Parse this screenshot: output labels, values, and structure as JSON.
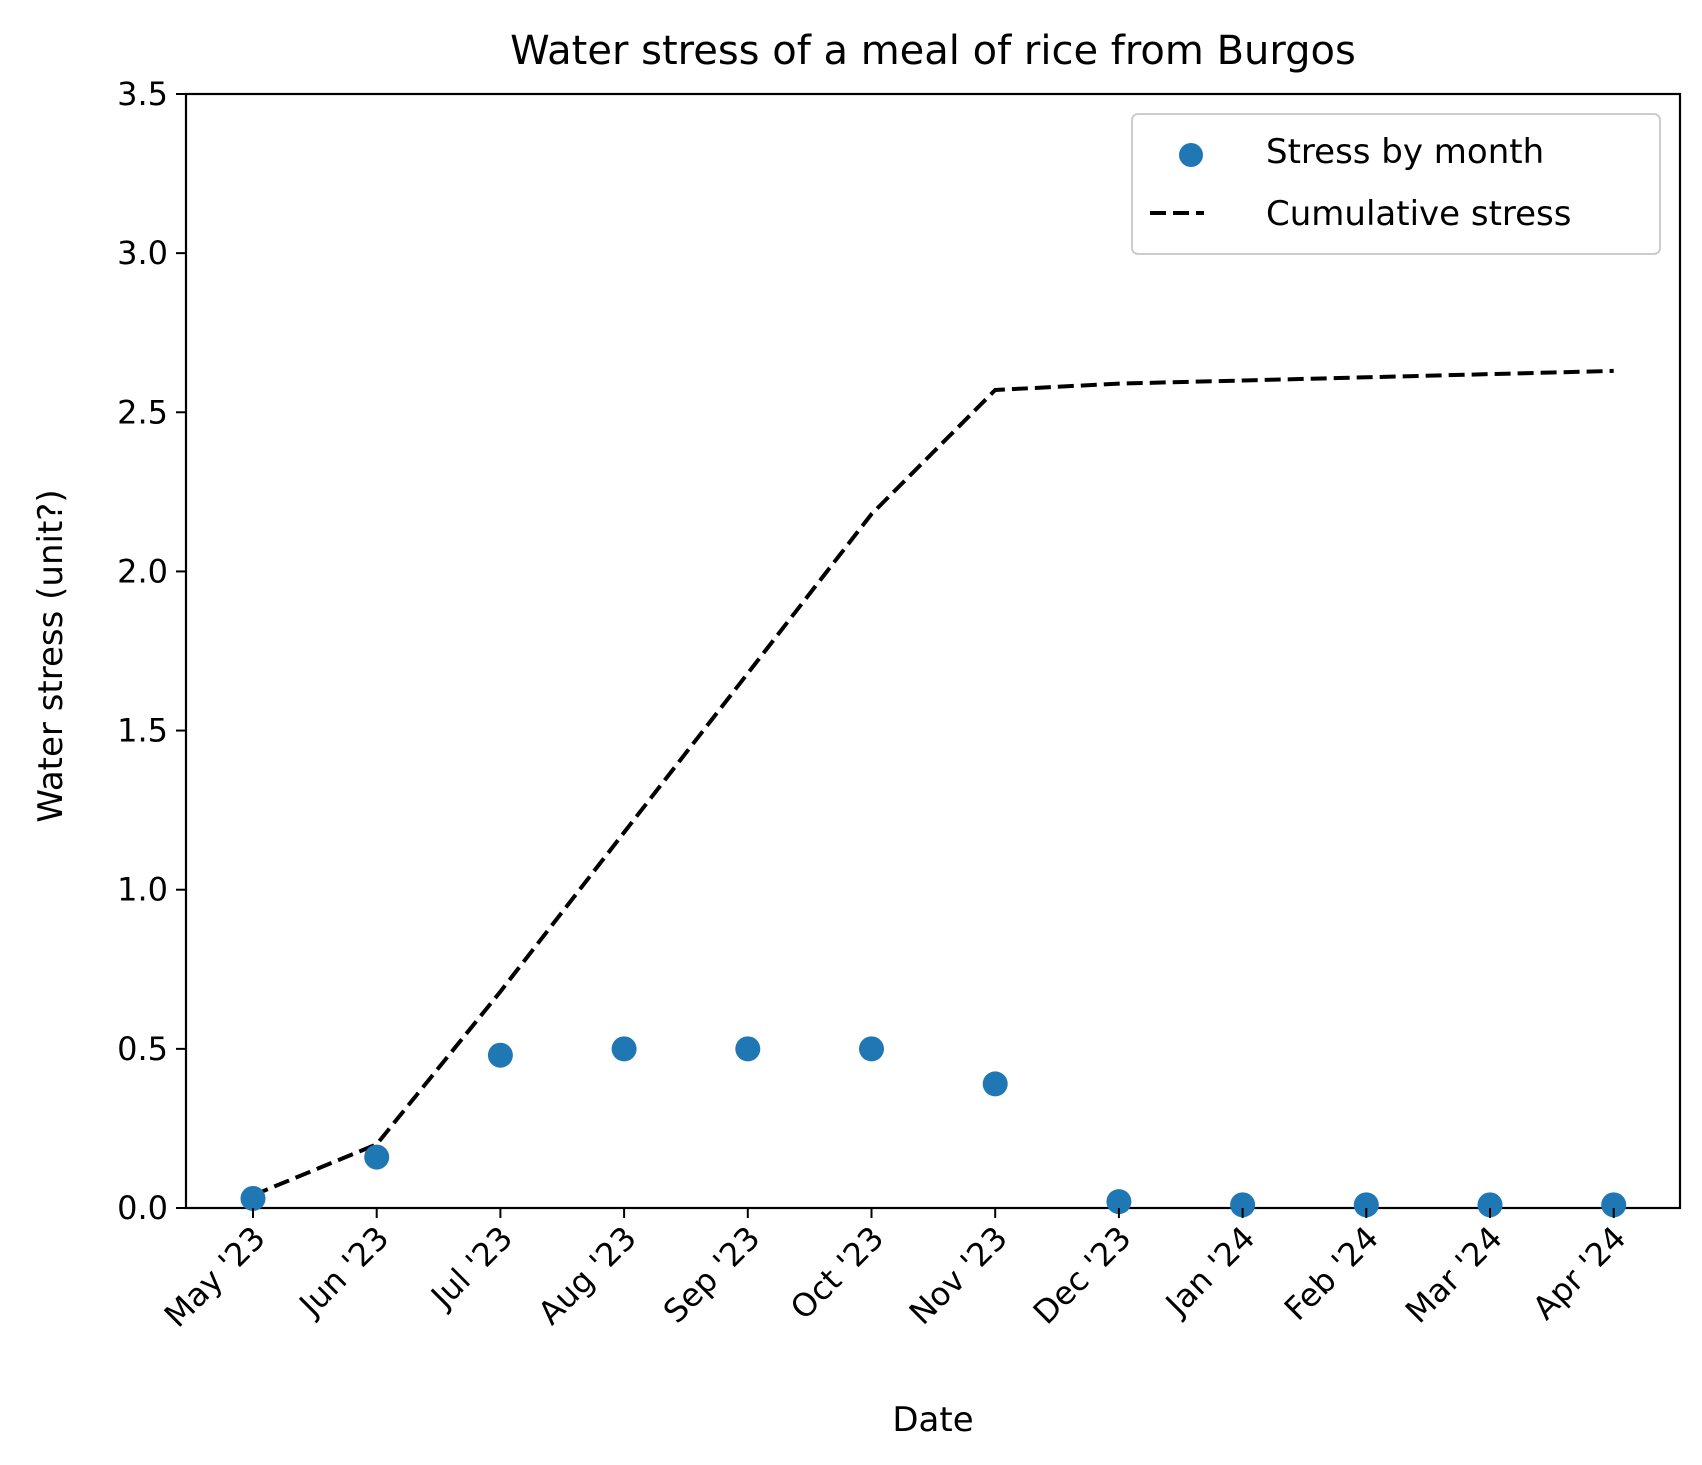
{
  "chart_data": {
    "type": "scatter",
    "title": "Water stress of a meal of rice from Burgos",
    "xlabel": "Date",
    "ylabel": "Water stress (unit?)",
    "ylim": [
      0,
      3.5
    ],
    "yticks": [
      "0.0",
      "0.5",
      "1.0",
      "1.5",
      "2.0",
      "2.5",
      "3.0",
      "3.5"
    ],
    "categories": [
      "May '23",
      "Jun '23",
      "Jul '23",
      "Aug '23",
      "Sep '23",
      "Oct '23",
      "Nov '23",
      "Dec '23",
      "Jan '24",
      "Feb '24",
      "Mar '24",
      "Apr '24"
    ],
    "grid": false,
    "legend_position": "top-right",
    "series": [
      {
        "name": "Stress by month",
        "kind": "scatter",
        "color": "#1f77b4",
        "values": [
          0.03,
          0.16,
          0.48,
          0.5,
          0.5,
          0.5,
          0.39,
          0.02,
          0.01,
          0.01,
          0.01,
          0.01
        ]
      },
      {
        "name": "Cumulative stress",
        "kind": "line",
        "style": "dashed",
        "color": "#000000",
        "values": [
          0.04,
          0.2,
          0.68,
          1.18,
          1.68,
          2.18,
          2.57,
          2.59,
          2.6,
          2.61,
          2.62,
          2.63
        ]
      }
    ]
  }
}
